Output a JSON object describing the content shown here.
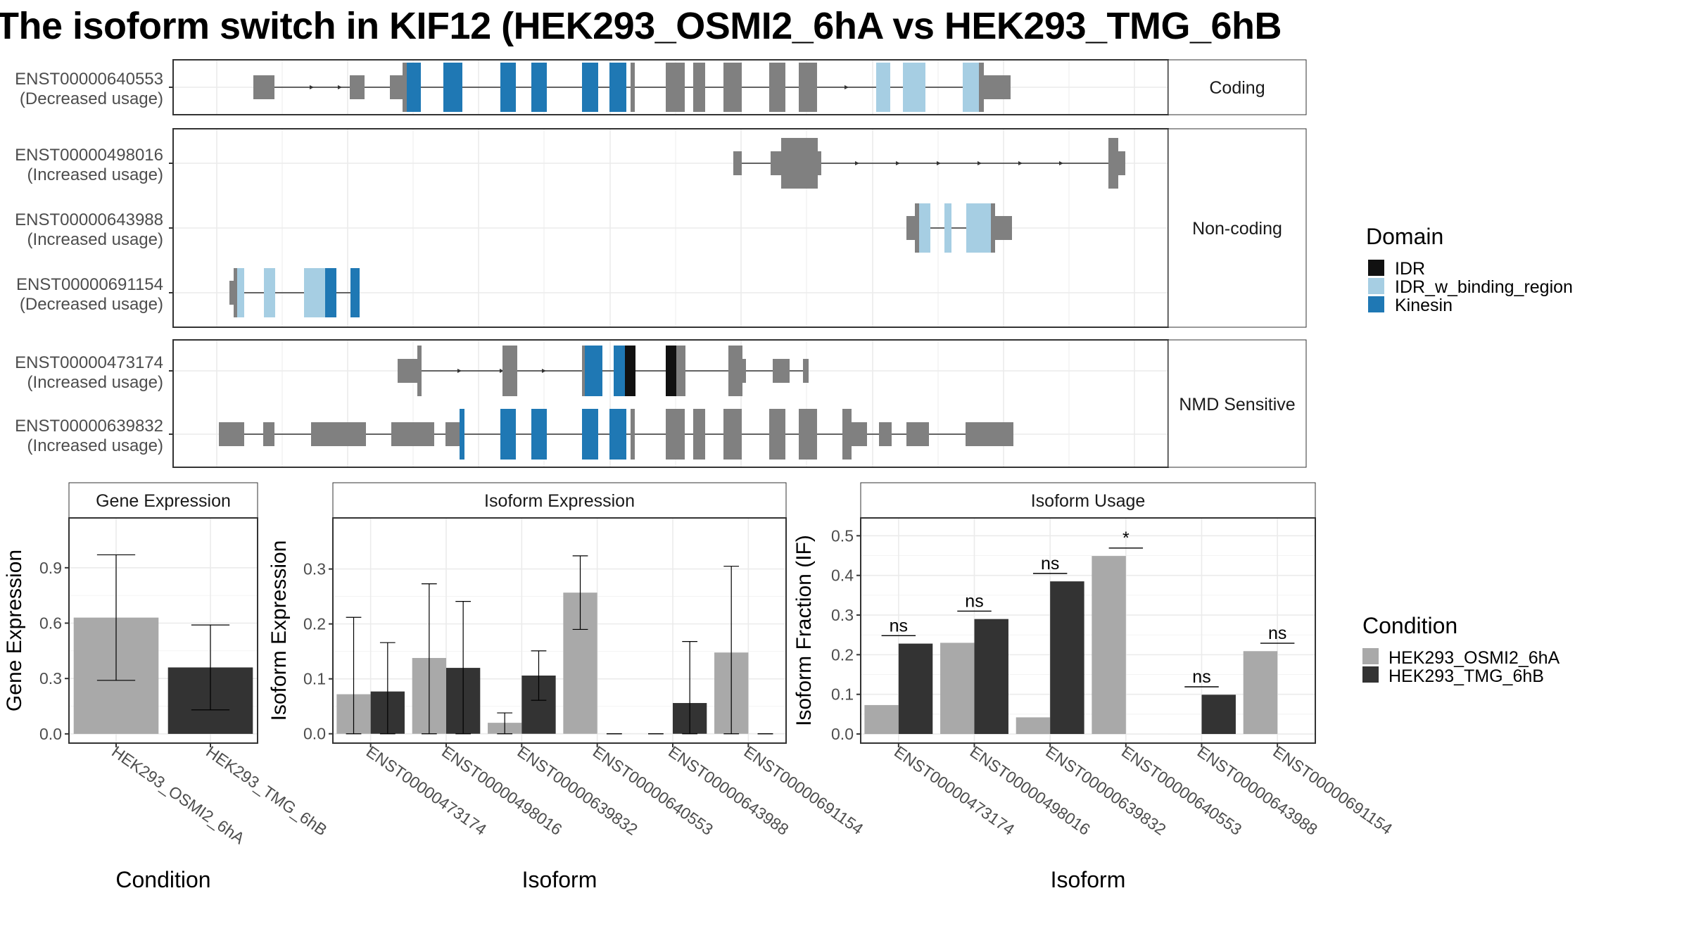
{
  "title": "The isoform switch in KIF12 (HEK293_OSMI2_6hA vs HEK293_TMG_6hB",
  "colors": {
    "exon_plain": "#808080",
    "IDR": "#111111",
    "IDR_w_binding_region": "#a6cee3",
    "Kinesin": "#1f78b4",
    "cond_A": "#a9a9a9",
    "cond_B": "#333333"
  },
  "transcripts": {
    "facets": [
      {
        "label": "Coding",
        "rows": [
          {
            "id": "ENST00000640553",
            "usage": "(Decreased usage)"
          }
        ]
      },
      {
        "label": "Non-coding",
        "rows": [
          {
            "id": "ENST00000498016",
            "usage": "(Increased usage)"
          },
          {
            "id": "ENST00000643988",
            "usage": "(Increased usage)"
          },
          {
            "id": "ENST00000691154",
            "usage": "(Decreased usage)"
          }
        ]
      },
      {
        "label": "NMD Sensitive",
        "rows": [
          {
            "id": "ENST00000473174",
            "usage": "(Increased usage)"
          },
          {
            "id": "ENST00000639832",
            "usage": "(Increased usage)"
          }
        ]
      }
    ]
  },
  "legend_domain": {
    "title": "Domain",
    "items": [
      {
        "name": "IDR",
        "color": "#111111"
      },
      {
        "name": "IDR_w_binding_region",
        "color": "#a6cee3"
      },
      {
        "name": "Kinesin",
        "color": "#1f78b4"
      }
    ]
  },
  "legend_condition": {
    "title": "Condition",
    "items": [
      {
        "name": "HEK293_OSMI2_6hA",
        "color": "#a9a9a9"
      },
      {
        "name": "HEK293_TMG_6hB",
        "color": "#333333"
      }
    ]
  },
  "chart_data": [
    {
      "type": "bar",
      "title": "Gene Expression",
      "xlabel": "Condition",
      "ylabel": "Gene Expression",
      "categories": [
        "HEK293_OSMI2_6hA",
        "HEK293_TMG_6hB"
      ],
      "values": [
        0.63,
        0.36
      ],
      "error_low": [
        0.29,
        0.13
      ],
      "error_high": [
        0.97,
        0.59
      ],
      "ylim": [
        -0.05,
        1.17
      ],
      "yticks": [
        0.0,
        0.3,
        0.6,
        0.9
      ],
      "ytick_labels": [
        "0.0",
        "0.3",
        "0.6",
        "0.9"
      ]
    },
    {
      "type": "bar",
      "title": "Isoform Expression",
      "xlabel": "Isoform",
      "ylabel": "Isoform Expression",
      "categories": [
        "ENST00000473174",
        "ENST00000498016",
        "ENST00000639832",
        "ENST00000640553",
        "ENST00000643988",
        "ENST00000691154"
      ],
      "series": [
        {
          "name": "HEK293_OSMI2_6hA",
          "values": [
            0.072,
            0.138,
            0.02,
            0.257,
            0.0,
            0.148
          ],
          "error_low": [
            0.0,
            0.0,
            0.0,
            0.19,
            0.0,
            0.0
          ],
          "error_high": [
            0.212,
            0.273,
            0.038,
            0.324,
            0.0,
            0.305
          ]
        },
        {
          "name": "HEK293_TMG_6hB",
          "values": [
            0.077,
            0.12,
            0.106,
            0.0,
            0.056,
            0.0
          ],
          "error_low": [
            0.0,
            0.0,
            0.061,
            0.0,
            0.0,
            0.0
          ],
          "error_high": [
            0.166,
            0.241,
            0.151,
            0.0,
            0.168,
            0.0
          ]
        }
      ],
      "ylim": [
        -0.017,
        0.393
      ],
      "yticks": [
        0.0,
        0.1,
        0.2,
        0.3
      ],
      "ytick_labels": [
        "0.0",
        "0.1",
        "0.2",
        "0.3"
      ]
    },
    {
      "type": "bar",
      "title": "Isoform Usage",
      "xlabel": "Isoform",
      "ylabel": "Isoform Fraction (IF)",
      "categories": [
        "ENST00000473174",
        "ENST00000498016",
        "ENST00000639832",
        "ENST00000640553",
        "ENST00000643988",
        "ENST00000691154"
      ],
      "series": [
        {
          "name": "HEK293_OSMI2_6hA",
          "values": [
            0.073,
            0.23,
            0.042,
            0.449,
            0.0,
            0.209
          ]
        },
        {
          "name": "HEK293_TMG_6hB",
          "values": [
            0.228,
            0.29,
            0.385,
            0.0,
            0.099,
            0.0
          ]
        }
      ],
      "significance": [
        "ns",
        "ns",
        "ns",
        "*",
        "ns",
        "ns"
      ],
      "significance_y": [
        0.248,
        0.31,
        0.405,
        0.469,
        0.119,
        0.229
      ],
      "ylim": [
        -0.023,
        0.545
      ],
      "yticks": [
        0.0,
        0.1,
        0.2,
        0.3,
        0.4,
        0.5
      ],
      "ytick_labels": [
        "0.0",
        "0.1",
        "0.2",
        "0.3",
        "0.4",
        "0.5"
      ]
    }
  ]
}
